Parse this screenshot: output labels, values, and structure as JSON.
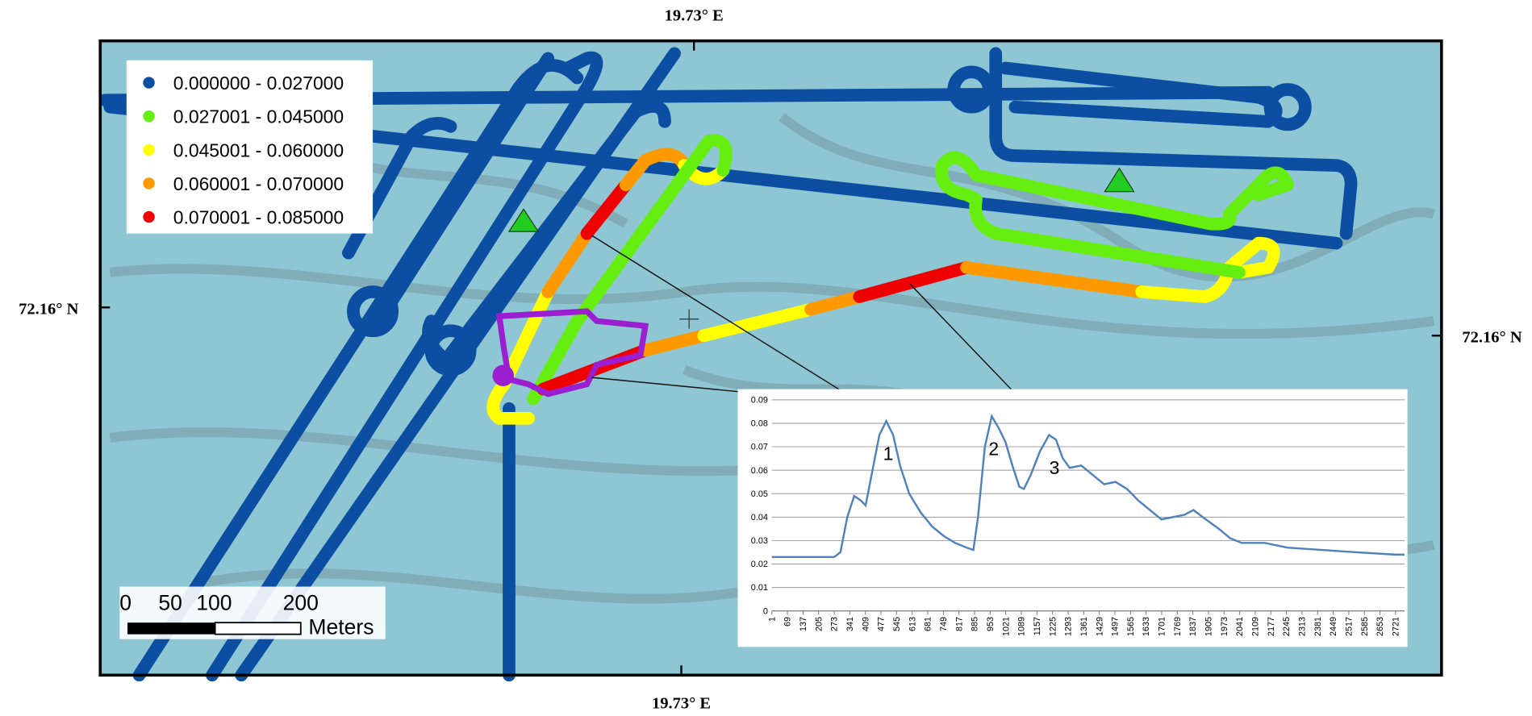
{
  "map": {
    "labels": {
      "top": "19.73° E",
      "bottom": "19.73° E",
      "left": "72.16° N",
      "right": "72.16° N"
    },
    "legend": [
      {
        "label": "0.000000 - 0.027000",
        "color": "#0b4ea2"
      },
      {
        "label": "0.027001 - 0.045000",
        "color": "#66ee11"
      },
      {
        "label": "0.045001 - 0.060000",
        "color": "#ffff00"
      },
      {
        "label": "0.060001 - 0.070000",
        "color": "#ff9900"
      },
      {
        "label": "0.070001 - 0.085000",
        "color": "#ee0000"
      }
    ],
    "scale_bar": {
      "labels": [
        "0",
        "50",
        "100",
        "200"
      ],
      "unit": "Meters"
    }
  },
  "chart_data": {
    "type": "line",
    "x": [
      1,
      100,
      273,
      300,
      330,
      360,
      390,
      410,
      440,
      470,
      500,
      530,
      560,
      600,
      650,
      700,
      750,
      800,
      850,
      880,
      900,
      930,
      960,
      990,
      1020,
      1050,
      1080,
      1100,
      1130,
      1170,
      1210,
      1240,
      1270,
      1300,
      1350,
      1400,
      1450,
      1500,
      1550,
      1600,
      1650,
      1700,
      1750,
      1800,
      1840,
      1880,
      1950,
      2000,
      2050,
      2150,
      2250,
      2400,
      2550,
      2721,
      2760
    ],
    "series": [
      {
        "color": "#4f81bd",
        "values": [
          0.023,
          0.023,
          0.023,
          0.025,
          0.04,
          0.049,
          0.047,
          0.045,
          0.06,
          0.075,
          0.081,
          0.075,
          0.062,
          0.05,
          0.042,
          0.036,
          0.032,
          0.029,
          0.027,
          0.026,
          0.04,
          0.07,
          0.083,
          0.078,
          0.072,
          0.062,
          0.053,
          0.052,
          0.058,
          0.068,
          0.075,
          0.073,
          0.065,
          0.061,
          0.062,
          0.058,
          0.054,
          0.055,
          0.052,
          0.047,
          0.043,
          0.039,
          0.04,
          0.041,
          0.043,
          0.04,
          0.035,
          0.031,
          0.029,
          0.029,
          0.027,
          0.026,
          0.025,
          0.024,
          0.024
        ]
      }
    ],
    "xlim": [
      1,
      2760
    ],
    "xticks": [
      1,
      69,
      137,
      205,
      273,
      341,
      409,
      477,
      545,
      613,
      681,
      749,
      817,
      885,
      953,
      1021,
      1089,
      1157,
      1225,
      1293,
      1361,
      1429,
      1497,
      1565,
      1633,
      1701,
      1769,
      1837,
      1905,
      1973,
      2041,
      2109,
      2177,
      2245,
      2313,
      2381,
      2449,
      2517,
      2585,
      2653,
      2721
    ],
    "ylim": [
      0,
      0.09
    ],
    "yticks": [
      0,
      0.01,
      0.02,
      0.03,
      0.04,
      0.05,
      0.06,
      0.07,
      0.08,
      0.09
    ],
    "grid": true,
    "annotations": [
      {
        "text": "1",
        "x": 500,
        "y": 0.081
      },
      {
        "text": "2",
        "x": 960,
        "y": 0.083
      },
      {
        "text": "3",
        "x": 1225,
        "y": 0.075
      }
    ]
  }
}
